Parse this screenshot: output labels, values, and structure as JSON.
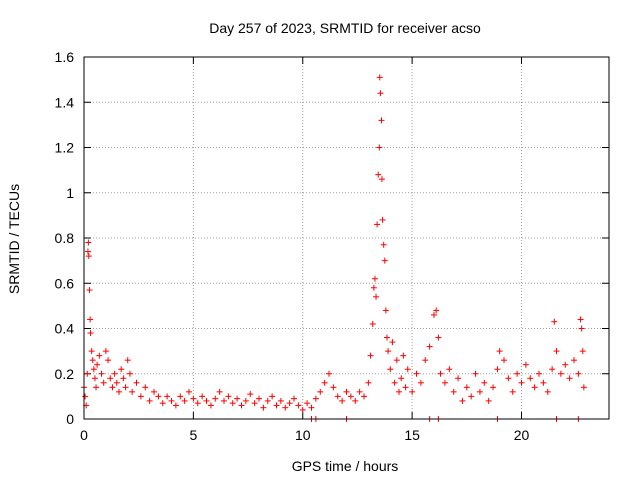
{
  "chart_data": {
    "type": "scatter",
    "title": "Day 257 of 2023, SRMTID for receiver acso",
    "xlabel": "GPS time / hours",
    "ylabel": "SRMTID / TECUs",
    "xlim": [
      0,
      24
    ],
    "ylim": [
      0,
      1.6
    ],
    "x_ticks": [
      0,
      5,
      10,
      15,
      20
    ],
    "x_tick_labels": [
      "0",
      "5",
      "10",
      "15",
      "20"
    ],
    "y_ticks": [
      0,
      0.2,
      0.4,
      0.6,
      0.8,
      1.0,
      1.2,
      1.4,
      1.6
    ],
    "y_tick_labels": [
      "0",
      "0.2",
      "0.4",
      "0.6",
      "0.8",
      "1",
      "1.2",
      "1.4",
      "1.6"
    ],
    "grid": true,
    "marker": "+",
    "series": [
      {
        "name": "SRMTID",
        "color": "#ff0000",
        "points": [
          [
            0.0,
            0.14
          ],
          [
            0.05,
            0.1
          ],
          [
            0.1,
            0.06
          ],
          [
            0.15,
            0.2
          ],
          [
            0.18,
            0.74
          ],
          [
            0.2,
            0.78
          ],
          [
            0.22,
            0.72
          ],
          [
            0.25,
            0.57
          ],
          [
            0.28,
            0.44
          ],
          [
            0.3,
            0.38
          ],
          [
            0.35,
            0.3
          ],
          [
            0.4,
            0.26
          ],
          [
            0.45,
            0.22
          ],
          [
            0.5,
            0.18
          ],
          [
            0.55,
            0.14
          ],
          [
            0.6,
            0.24
          ],
          [
            0.7,
            0.28
          ],
          [
            0.8,
            0.2
          ],
          [
            0.9,
            0.16
          ],
          [
            1.0,
            0.3
          ],
          [
            1.1,
            0.26
          ],
          [
            1.2,
            0.18
          ],
          [
            1.3,
            0.14
          ],
          [
            1.4,
            0.2
          ],
          [
            1.5,
            0.16
          ],
          [
            1.6,
            0.12
          ],
          [
            1.7,
            0.22
          ],
          [
            1.8,
            0.18
          ],
          [
            1.9,
            0.14
          ],
          [
            2.0,
            0.26
          ],
          [
            2.1,
            0.2
          ],
          [
            2.2,
            0.12
          ],
          [
            2.4,
            0.16
          ],
          [
            2.6,
            0.1
          ],
          [
            2.8,
            0.14
          ],
          [
            3.0,
            0.08
          ],
          [
            3.2,
            0.12
          ],
          [
            3.4,
            0.1
          ],
          [
            3.6,
            0.07
          ],
          [
            3.8,
            0.1
          ],
          [
            4.0,
            0.08
          ],
          [
            4.2,
            0.06
          ],
          [
            4.4,
            0.1
          ],
          [
            4.6,
            0.08
          ],
          [
            4.8,
            0.12
          ],
          [
            5.0,
            0.09
          ],
          [
            5.2,
            0.07
          ],
          [
            5.4,
            0.1
          ],
          [
            5.6,
            0.08
          ],
          [
            5.8,
            0.06
          ],
          [
            6.0,
            0.09
          ],
          [
            6.2,
            0.12
          ],
          [
            6.4,
            0.08
          ],
          [
            6.6,
            0.1
          ],
          [
            6.8,
            0.07
          ],
          [
            7.0,
            0.09
          ],
          [
            7.2,
            0.06
          ],
          [
            7.4,
            0.08
          ],
          [
            7.6,
            0.11
          ],
          [
            7.8,
            0.07
          ],
          [
            8.0,
            0.09
          ],
          [
            8.2,
            0.05
          ],
          [
            8.4,
            0.08
          ],
          [
            8.6,
            0.1
          ],
          [
            8.8,
            0.06
          ],
          [
            9.0,
            0.08
          ],
          [
            9.2,
            0.05
          ],
          [
            9.4,
            0.07
          ],
          [
            9.6,
            0.09
          ],
          [
            9.8,
            0.06
          ],
          [
            10.0,
            0.04
          ],
          [
            10.2,
            0.07
          ],
          [
            10.4,
            0.05
          ],
          [
            10.6,
            0.09
          ],
          [
            10.8,
            0.12
          ],
          [
            11.0,
            0.16
          ],
          [
            11.2,
            0.2
          ],
          [
            11.4,
            0.14
          ],
          [
            11.6,
            0.1
          ],
          [
            11.8,
            0.08
          ],
          [
            12.0,
            0.12
          ],
          [
            12.2,
            0.1
          ],
          [
            12.4,
            0.08
          ],
          [
            12.6,
            0.12
          ],
          [
            12.8,
            0.1
          ],
          [
            13.0,
            0.16
          ],
          [
            13.1,
            0.28
          ],
          [
            13.2,
            0.42
          ],
          [
            13.25,
            0.58
          ],
          [
            13.3,
            0.62
          ],
          [
            13.35,
            0.54
          ],
          [
            13.4,
            0.86
          ],
          [
            13.45,
            1.08
          ],
          [
            13.5,
            1.2
          ],
          [
            13.52,
            1.51
          ],
          [
            13.55,
            1.44
          ],
          [
            13.6,
            1.32
          ],
          [
            13.62,
            1.06
          ],
          [
            13.65,
            0.88
          ],
          [
            13.7,
            0.77
          ],
          [
            13.75,
            0.7
          ],
          [
            13.8,
            0.48
          ],
          [
            13.85,
            0.36
          ],
          [
            13.9,
            0.3
          ],
          [
            14.0,
            0.22
          ],
          [
            14.1,
            0.34
          ],
          [
            14.2,
            0.16
          ],
          [
            14.3,
            0.26
          ],
          [
            14.4,
            0.12
          ],
          [
            14.5,
            0.18
          ],
          [
            14.6,
            0.28
          ],
          [
            14.7,
            0.14
          ],
          [
            14.8,
            0.22
          ],
          [
            15.0,
            0.12
          ],
          [
            15.2,
            0.2
          ],
          [
            15.4,
            0.16
          ],
          [
            15.6,
            0.26
          ],
          [
            15.8,
            0.32
          ],
          [
            16.0,
            0.46
          ],
          [
            16.1,
            0.48
          ],
          [
            16.2,
            0.36
          ],
          [
            16.3,
            0.2
          ],
          [
            16.5,
            0.16
          ],
          [
            16.7,
            0.22
          ],
          [
            16.9,
            0.12
          ],
          [
            17.1,
            0.18
          ],
          [
            17.3,
            0.08
          ],
          [
            17.5,
            0.14
          ],
          [
            17.7,
            0.1
          ],
          [
            17.9,
            0.2
          ],
          [
            18.1,
            0.12
          ],
          [
            18.3,
            0.16
          ],
          [
            18.5,
            0.08
          ],
          [
            18.7,
            0.14
          ],
          [
            18.9,
            0.22
          ],
          [
            19.0,
            0.3
          ],
          [
            19.2,
            0.26
          ],
          [
            19.4,
            0.18
          ],
          [
            19.6,
            0.12
          ],
          [
            19.8,
            0.2
          ],
          [
            20.0,
            0.16
          ],
          [
            20.2,
            0.24
          ],
          [
            20.4,
            0.18
          ],
          [
            20.6,
            0.14
          ],
          [
            20.8,
            0.2
          ],
          [
            21.0,
            0.16
          ],
          [
            21.2,
            0.12
          ],
          [
            21.4,
            0.22
          ],
          [
            21.5,
            0.43
          ],
          [
            21.6,
            0.3
          ],
          [
            21.8,
            0.2
          ],
          [
            22.0,
            0.24
          ],
          [
            22.2,
            0.18
          ],
          [
            22.4,
            0.26
          ],
          [
            22.6,
            0.2
          ],
          [
            22.7,
            0.44
          ],
          [
            22.75,
            0.4
          ],
          [
            22.8,
            0.3
          ],
          [
            22.85,
            0.14
          ],
          [
            10.4,
            0.0
          ],
          [
            10.6,
            0.0
          ],
          [
            12.0,
            0.0
          ],
          [
            15.8,
            0.0
          ],
          [
            16.2,
            0.0
          ],
          [
            18.9,
            0.0
          ],
          [
            21.6,
            0.0
          ],
          [
            22.6,
            0.0
          ]
        ]
      }
    ]
  }
}
